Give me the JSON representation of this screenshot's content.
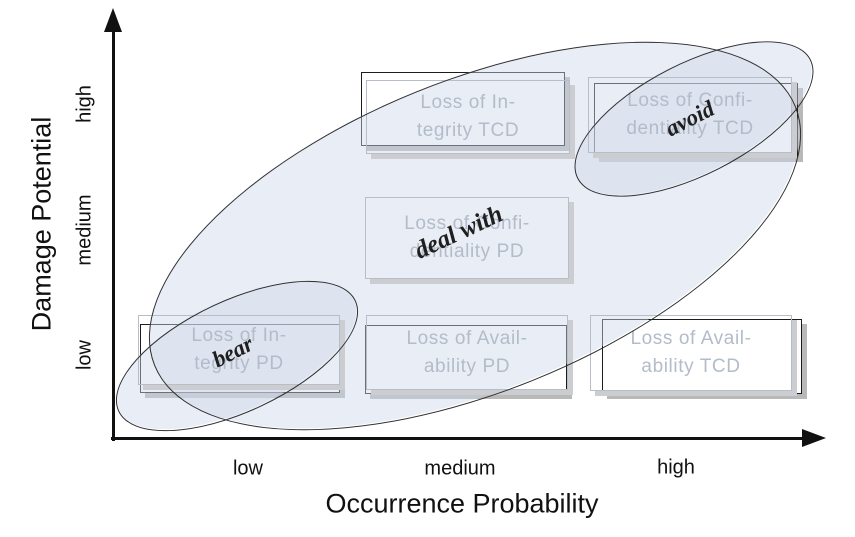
{
  "diagram": {
    "type": "risk-matrix",
    "x_axis": {
      "title": "Occurrence Probability",
      "ticks": [
        "low",
        "medium",
        "high"
      ]
    },
    "y_axis": {
      "title": "Damage Potential",
      "ticks_top_to_bottom": [
        "high",
        "medium",
        "low"
      ]
    },
    "boxes": [
      {
        "id": "integrity-tcd",
        "line1": "Loss of In-",
        "line2": "tegrity TCD",
        "occurrence": "medium",
        "damage": "high",
        "stacked_card_behind": true
      },
      {
        "id": "confidentiality-tcd",
        "line1": "Loss of Confi-",
        "line2": "dentiality TCD",
        "occurrence": "high",
        "damage": "high",
        "stacked_card_behind": true
      },
      {
        "id": "confidentiality-pd",
        "line1": "Loss of Confi-",
        "line2": "dentiality PD",
        "occurrence": "medium",
        "damage": "medium",
        "stacked_card_behind": false
      },
      {
        "id": "integrity-pd",
        "line1": "Loss of In-",
        "line2": "tegrity PD",
        "occurrence": "low",
        "damage": "low",
        "stacked_card_behind": true
      },
      {
        "id": "availability-pd",
        "line1": "Loss of Avail-",
        "line2": "ability PD",
        "occurrence": "medium",
        "damage": "low",
        "stacked_card_behind": true
      },
      {
        "id": "availability-tcd",
        "line1": "Loss of Avail-",
        "line2": "ability TCD",
        "occurrence": "high",
        "damage": "low",
        "stacked_card_behind": true
      }
    ],
    "regions": [
      {
        "id": "bear",
        "label": "bear"
      },
      {
        "id": "deal-with",
        "label": "deal with"
      },
      {
        "id": "avoid",
        "label": "avoid"
      }
    ],
    "colors": {
      "region_fill": "rgba(206,216,233,0.45)",
      "region_outline": "#2e2e2e",
      "box_border": "#b7beca",
      "box_text": "#b3bcc9",
      "box_shadow": "#cbcdd1",
      "back_card_border": "#1c1c1c",
      "axis": "#111111"
    }
  }
}
